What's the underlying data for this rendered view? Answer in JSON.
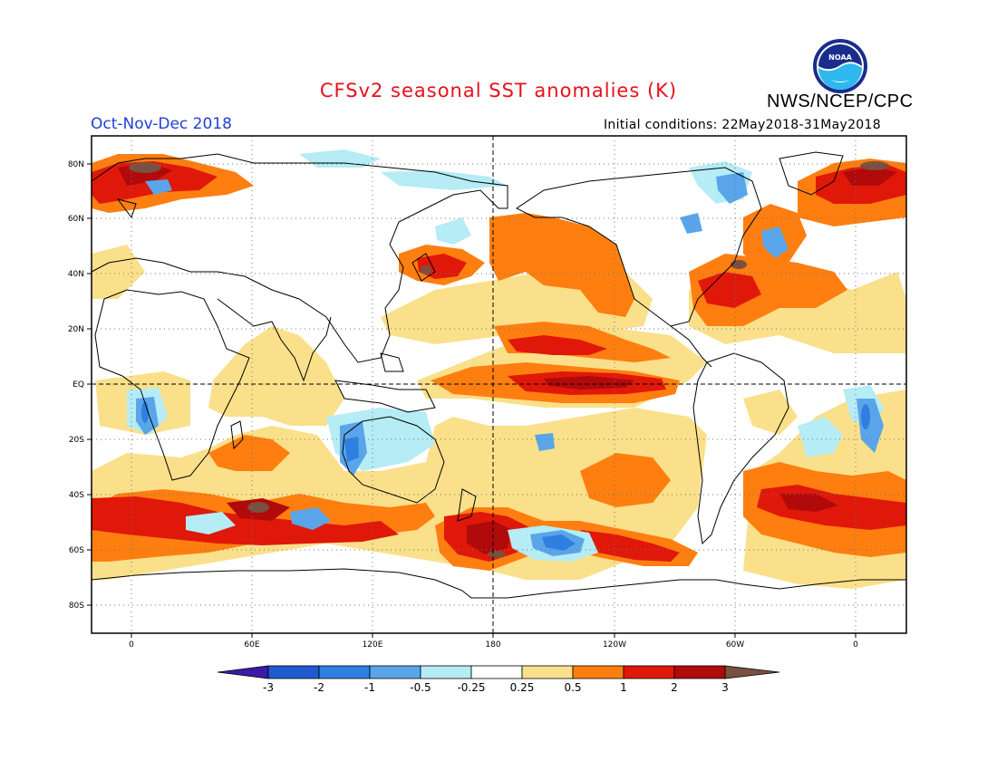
{
  "header": {
    "title": "CFSv2 seasonal SST anomalies (K)",
    "organization": "NWS/NCEP/CPC",
    "logo_text": "NOAA",
    "season": "Oct-Nov-Dec 2018",
    "initial_conditions": "Initial conditions: 22May2018-31May2018"
  },
  "map": {
    "lat_labels": [
      "80N",
      "60N",
      "40N",
      "20N",
      "EQ",
      "20S",
      "40S",
      "60S",
      "80S"
    ],
    "lon_labels": [
      "0",
      "60E",
      "120E",
      "180",
      "120W",
      "60W",
      "0"
    ],
    "projection": "cylindrical equidistant",
    "grid": "dotted",
    "reference_lines": "dashed equator and 180 meridian"
  },
  "colorbar": {
    "levels": [
      "-3",
      "-2",
      "-1",
      "-0.5",
      "-0.25",
      "0.25",
      "0.5",
      "1",
      "2",
      "3"
    ],
    "colors": [
      "#3a1aa6",
      "#1e5bd1",
      "#2f7fe0",
      "#5aa5ea",
      "#b5ecf5",
      "#ffffff",
      "#fae08a",
      "#ff7e10",
      "#e0180a",
      "#b00a0a",
      "#7a5040"
    ]
  },
  "colors": {
    "title": "#e8101a",
    "season": "#1f3fd6",
    "land": "#ffffff",
    "coast": "#000000"
  }
}
